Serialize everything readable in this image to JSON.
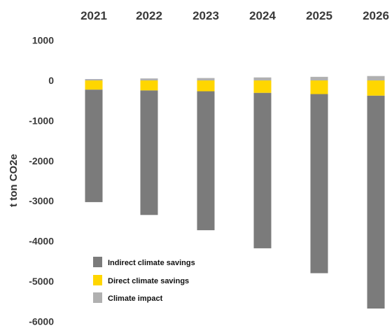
{
  "chart_data": {
    "type": "bar",
    "stacked": true,
    "categories": [
      "2021",
      "2022",
      "2023",
      "2024",
      "2025",
      "2026"
    ],
    "category_axis_position": "top",
    "ylabel": "t ton CO2e",
    "ylim": [
      -6000,
      1000
    ],
    "yticks": [
      1000,
      0,
      -1000,
      -2000,
      -3000,
      -4000,
      -5000,
      -6000
    ],
    "grid": false,
    "legend_position": "bottom-left",
    "series": [
      {
        "name": "Indirect climate savings",
        "color": "#7b7b7b",
        "values": [
          -2800,
          -3100,
          -3460,
          -3870,
          -4460,
          -5300
        ]
      },
      {
        "name": "Direct climate savings",
        "color": "#ffd600",
        "values": [
          -230,
          -250,
          -270,
          -310,
          -340,
          -380
        ]
      },
      {
        "name": "Climate impact",
        "color": "#b0b0b0",
        "values": [
          35,
          50,
          60,
          75,
          90,
          110
        ]
      }
    ]
  }
}
